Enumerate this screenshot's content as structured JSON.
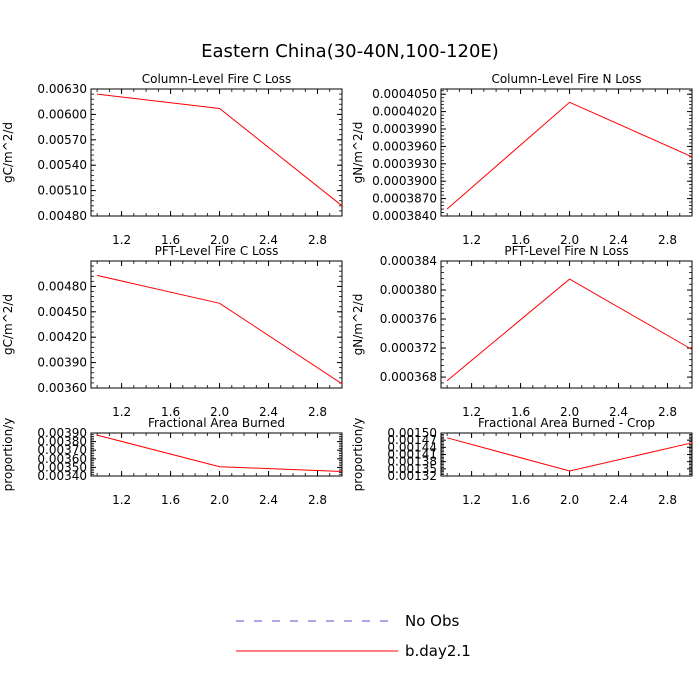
{
  "figure": {
    "title": "Eastern China(30-40N,100-120E)"
  },
  "legend": {
    "items": [
      {
        "label": "No Obs",
        "color": "#5555cc",
        "style": "dashed"
      },
      {
        "label": "b.day2.1",
        "color": "#ff0000",
        "style": "solid"
      }
    ]
  },
  "chart_data": [
    {
      "type": "line",
      "title": "Column-Level Fire C Loss",
      "ylabel": "gC/m^2/d",
      "xlabel": "",
      "xlim": [
        0.95,
        3.0
      ],
      "ylim": [
        0.0048,
        0.0063
      ],
      "xticks": [
        "1.2",
        "1.6",
        "2.0",
        "2.4",
        "2.8"
      ],
      "yticks": [
        "0.00480",
        "0.00510",
        "0.00540",
        "0.00570",
        "0.00600",
        "0.00630"
      ],
      "series": [
        {
          "name": "b.day2.1",
          "color": "#ff0000",
          "x": [
            1,
            2,
            3
          ],
          "y": [
            0.00624,
            0.00607,
            0.00492
          ]
        }
      ]
    },
    {
      "type": "line",
      "title": "Column-Level Fire N Loss",
      "ylabel": "gN/m^2/d",
      "xlabel": "",
      "xlim": [
        0.95,
        3.0
      ],
      "ylim": [
        0.000384,
        0.0004059
      ],
      "xticks": [
        "1.2",
        "1.6",
        "2.0",
        "2.4",
        "2.8"
      ],
      "yticks": [
        "0.0003840",
        "0.0003870",
        "0.0003900",
        "0.0003930",
        "0.0003960",
        "0.0003990",
        "0.0004020",
        "0.0004050"
      ],
      "series": [
        {
          "name": "b.day2.1",
          "color": "#ff0000",
          "x": [
            1,
            2,
            3
          ],
          "y": [
            0.0003852,
            0.0004036,
            0.0003942
          ]
        }
      ]
    },
    {
      "type": "line",
      "title": "PFT-Level Fire C Loss",
      "ylabel": "gC/m^2/d",
      "xlabel": "",
      "xlim": [
        0.95,
        3.0
      ],
      "ylim": [
        0.0036,
        0.0051
      ],
      "xticks": [
        "1.2",
        "1.6",
        "2.0",
        "2.4",
        "2.8"
      ],
      "yticks": [
        "0.00360",
        "0.00390",
        "0.00420",
        "0.00450",
        "0.00480"
      ],
      "series": [
        {
          "name": "b.day2.1",
          "color": "#ff0000",
          "x": [
            1,
            2,
            3
          ],
          "y": [
            0.00493,
            0.0046,
            0.00365
          ]
        }
      ]
    },
    {
      "type": "line",
      "title": "PFT-Level Fire N Loss",
      "ylabel": "gN/m^2/d",
      "xlabel": "",
      "xlim": [
        0.95,
        3.0
      ],
      "ylim": [
        0.0003665,
        0.000384
      ],
      "xticks": [
        "1.2",
        "1.6",
        "2.0",
        "2.4",
        "2.8"
      ],
      "yticks": [
        "0.000368",
        "0.000372",
        "0.000376",
        "0.000380",
        "0.000384"
      ],
      "series": [
        {
          "name": "b.day2.1",
          "color": "#ff0000",
          "x": [
            1,
            2,
            3
          ],
          "y": [
            0.0003675,
            0.0003815,
            0.0003718
          ]
        }
      ]
    },
    {
      "type": "line",
      "title": "Fractional Area Burned",
      "ylabel": "proportion/y",
      "xlabel": "",
      "xlim": [
        0.95,
        3.0
      ],
      "ylim": [
        0.0034,
        0.0039
      ],
      "xticks": [
        "1.2",
        "1.6",
        "2.0",
        "2.4",
        "2.8"
      ],
      "yticks": [
        "0.00340",
        "0.00350",
        "0.00360",
        "0.00370",
        "0.00380",
        "0.00390"
      ],
      "series": [
        {
          "name": "b.day2.1",
          "color": "#ff0000",
          "x": [
            1,
            2,
            3
          ],
          "y": [
            0.003875,
            0.003508,
            0.003452
          ]
        }
      ]
    },
    {
      "type": "line",
      "title": "Fractional Area Burned - Crop",
      "ylabel": "proportion/y",
      "xlabel": "",
      "xlim": [
        0.95,
        3.0
      ],
      "ylim": [
        0.00132,
        0.0015
      ],
      "xticks": [
        "1.2",
        "1.6",
        "2.0",
        "2.4",
        "2.8"
      ],
      "yticks": [
        "0.00132",
        "0.00135",
        "0.00138",
        "0.00141",
        "0.00144",
        "0.00147",
        "0.00150"
      ],
      "series": [
        {
          "name": "b.day2.1",
          "color": "#ff0000",
          "x": [
            1,
            2,
            3
          ],
          "y": [
            0.00148,
            0.001341,
            0.001459
          ]
        }
      ]
    }
  ]
}
